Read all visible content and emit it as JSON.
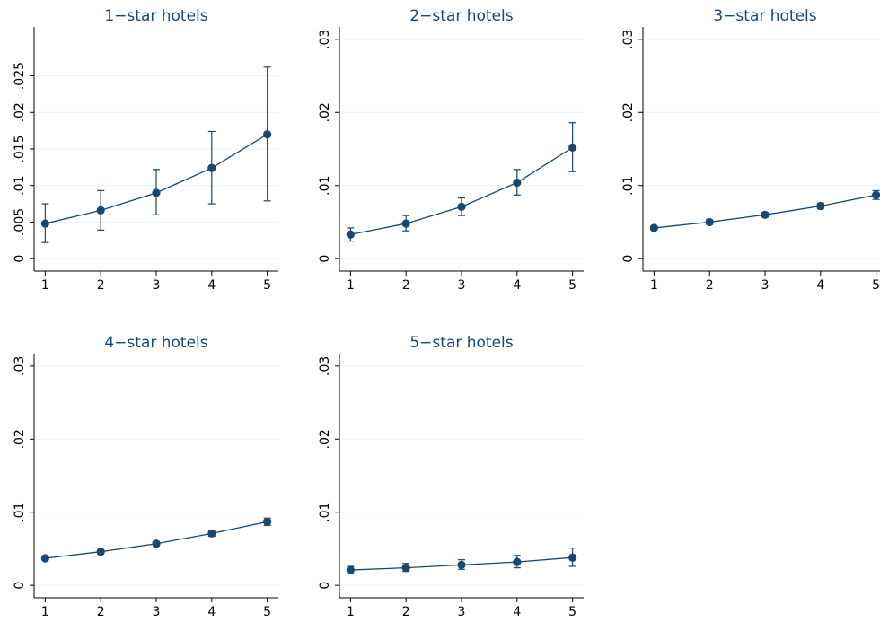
{
  "chart_data": [
    {
      "type": "line",
      "title": "1−star hotels",
      "color": "#1a476f",
      "grid": true,
      "x": [
        1,
        2,
        3,
        4,
        5
      ],
      "values": [
        0.0048,
        0.0066,
        0.009,
        0.0124,
        0.017
      ],
      "lower": [
        0.0022,
        0.0039,
        0.006,
        0.0075,
        0.0079
      ],
      "upper": [
        0.0075,
        0.0093,
        0.0122,
        0.0174,
        0.0262
      ],
      "xlim": [
        0.8,
        5.2
      ],
      "xticks": [
        1,
        2,
        3,
        4,
        5
      ],
      "ylim": [
        -0.0017,
        0.0317
      ],
      "yticks": [
        0,
        {
          "value": 0.005,
          "label": ".005"
        },
        {
          "value": 0.01,
          "label": ".01"
        },
        {
          "value": 0.015,
          "label": ".015"
        },
        {
          "value": 0.02,
          "label": ".02"
        },
        {
          "value": 0.025,
          "label": ".025"
        }
      ]
    },
    {
      "type": "line",
      "title": "2−star hotels",
      "color": "#1a476f",
      "grid": true,
      "x": [
        1,
        2,
        3,
        4,
        5
      ],
      "values": [
        0.0033,
        0.0048,
        0.0071,
        0.0104,
        0.0152
      ],
      "lower": [
        0.0024,
        0.0038,
        0.0059,
        0.0087,
        0.0119
      ],
      "upper": [
        0.0042,
        0.0059,
        0.0083,
        0.0122,
        0.0186
      ],
      "xlim": [
        0.8,
        5.2
      ],
      "xticks": [
        1,
        2,
        3,
        4,
        5
      ],
      "ylim": [
        -0.0017,
        0.0317
      ],
      "yticks": [
        0,
        {
          "value": 0.01,
          "label": ".01"
        },
        {
          "value": 0.02,
          "label": ".02"
        },
        {
          "value": 0.03,
          "label": ".03"
        }
      ]
    },
    {
      "type": "line",
      "title": "3−star hotels",
      "color": "#1a476f",
      "grid": true,
      "x": [
        1,
        2,
        3,
        4,
        5
      ],
      "values": [
        0.0042,
        0.005,
        0.006,
        0.0072,
        0.0087
      ],
      "lower": [
        0.0039,
        0.0047,
        0.0057,
        0.0068,
        0.0081
      ],
      "upper": [
        0.0045,
        0.0053,
        0.0063,
        0.0076,
        0.0093
      ],
      "xlim": [
        0.8,
        5.2
      ],
      "xticks": [
        1,
        2,
        3,
        4,
        5
      ],
      "ylim": [
        -0.0017,
        0.0317
      ],
      "yticks": [
        0,
        {
          "value": 0.01,
          "label": ".01"
        },
        {
          "value": 0.02,
          "label": ".02"
        },
        {
          "value": 0.03,
          "label": ".03"
        }
      ]
    },
    {
      "type": "line",
      "title": "4−star hotels",
      "color": "#1a476f",
      "grid": true,
      "x": [
        1,
        2,
        3,
        4,
        5
      ],
      "values": [
        0.0037,
        0.0046,
        0.0057,
        0.0071,
        0.0087
      ],
      "lower": [
        0.0035,
        0.0043,
        0.0054,
        0.0067,
        0.0082
      ],
      "upper": [
        0.0039,
        0.0049,
        0.006,
        0.0075,
        0.0092
      ],
      "xlim": [
        0.8,
        5.2
      ],
      "xticks": [
        1,
        2,
        3,
        4,
        5
      ],
      "ylim": [
        -0.0017,
        0.0317
      ],
      "yticks": [
        0,
        {
          "value": 0.01,
          "label": ".01"
        },
        {
          "value": 0.02,
          "label": ".02"
        },
        {
          "value": 0.03,
          "label": ".03"
        }
      ]
    },
    {
      "type": "line",
      "title": "5−star hotels",
      "color": "#1a476f",
      "grid": true,
      "x": [
        1,
        2,
        3,
        4,
        5
      ],
      "values": [
        0.0021,
        0.0024,
        0.0028,
        0.0032,
        0.0038
      ],
      "lower": [
        0.0016,
        0.0019,
        0.0022,
        0.0024,
        0.0026
      ],
      "upper": [
        0.0026,
        0.003,
        0.0035,
        0.0041,
        0.0051
      ],
      "xlim": [
        0.8,
        5.2
      ],
      "xticks": [
        1,
        2,
        3,
        4,
        5
      ],
      "ylim": [
        -0.0017,
        0.0317
      ],
      "yticks": [
        0,
        {
          "value": 0.01,
          "label": ".01"
        },
        {
          "value": 0.02,
          "label": ".02"
        },
        {
          "value": 0.03,
          "label": ".03"
        }
      ]
    }
  ]
}
